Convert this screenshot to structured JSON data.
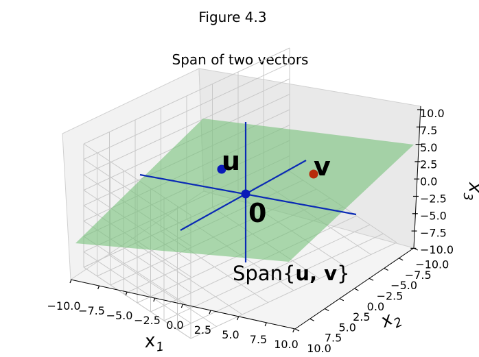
{
  "figure": {
    "suptitle": "Figure 4.3"
  },
  "chart_data": {
    "type": "3d-plane",
    "title": "Span of two vectors",
    "xlabel": "x",
    "xlabel_sub": "1",
    "ylabel": "x",
    "ylabel_sub": "2",
    "zlabel": "x",
    "zlabel_sub": "3",
    "xlim": [
      -10,
      10
    ],
    "ylim": [
      -10,
      10
    ],
    "zlim": [
      -10,
      10
    ],
    "ticks": [
      -10,
      -7.5,
      -5,
      -2.5,
      0,
      2.5,
      5,
      7.5,
      10
    ],
    "x_tick_labels": [
      "−10.0",
      "−7.5",
      "−5.0",
      "−2.5",
      "0.0",
      "2.5",
      "5.0",
      "7.5",
      "10.0"
    ],
    "y_tick_labels": [
      "−10.0",
      "−7.5",
      "−5.0",
      "−2.5",
      "0.0",
      "2.5",
      "5.0",
      "7.5",
      "10.0"
    ],
    "z_tick_labels": [
      "−10.0",
      "−7.5",
      "−5.0",
      "−2.5",
      "0.0",
      "2.5",
      "5.0",
      "7.5",
      "10.0"
    ],
    "grid": true,
    "points": [
      {
        "label": "u",
        "color": "#0a1ab8"
      },
      {
        "label": "v",
        "color": "#b82a0a"
      },
      {
        "label": "0",
        "color": "#0a1ab8"
      }
    ],
    "span_label_prefix": "Span{",
    "span_label_vectors": "u, v",
    "span_label_suffix": "}",
    "plane_color": "#76c27a",
    "axis_line_color": "#0a2ab5"
  }
}
